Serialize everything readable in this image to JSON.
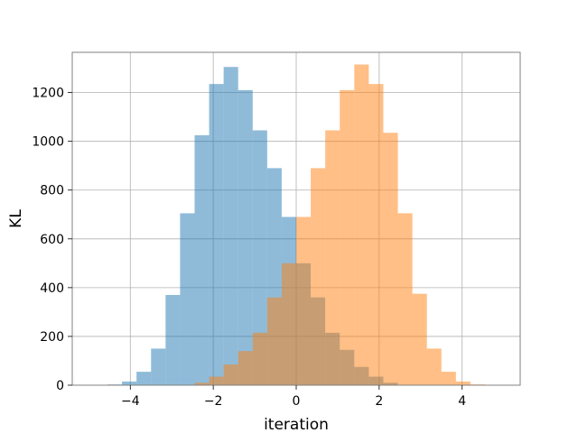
{
  "chart_data": {
    "type": "bar",
    "xlabel": "iteration",
    "ylabel": "KL",
    "xlim": [
      -5.4,
      5.4
    ],
    "ylim": [
      0,
      1365
    ],
    "grid": true,
    "xticks": [
      -4,
      -2,
      0,
      2,
      4
    ],
    "xtick_labels": [
      "−4",
      "−2",
      "0",
      "2",
      "4"
    ],
    "yticks": [
      0,
      200,
      400,
      600,
      800,
      1000,
      1200
    ],
    "ytick_labels": [
      "0",
      "200",
      "400",
      "600",
      "800",
      "1000",
      "1200"
    ],
    "series": [
      {
        "color": "#1f77b4",
        "opacity": 0.5,
        "bin_edges": [
          -4.55,
          -4.2,
          -3.85,
          -3.5,
          -3.15,
          -2.8,
          -2.45,
          -2.1,
          -1.75,
          -1.4,
          -1.05,
          -0.7,
          -0.35,
          0.0,
          0.35,
          0.7,
          1.05,
          1.4,
          1.75,
          2.1,
          2.45
        ],
        "counts": [
          3,
          15,
          55,
          150,
          370,
          705,
          1025,
          1235,
          1305,
          1210,
          1045,
          890,
          690,
          500,
          360,
          215,
          145,
          75,
          35,
          10
        ]
      },
      {
        "color": "#ff7f0e",
        "opacity": 0.5,
        "bin_edges": [
          -2.45,
          -2.1,
          -1.75,
          -1.4,
          -1.05,
          -0.7,
          -0.35,
          0.0,
          0.35,
          0.7,
          1.05,
          1.4,
          1.75,
          2.1,
          2.45,
          2.8,
          3.15,
          3.5,
          3.85,
          4.2,
          4.55
        ],
        "counts": [
          10,
          35,
          85,
          140,
          215,
          360,
          500,
          690,
          890,
          1045,
          1210,
          1315,
          1235,
          1035,
          705,
          375,
          150,
          55,
          15,
          3
        ]
      }
    ]
  }
}
